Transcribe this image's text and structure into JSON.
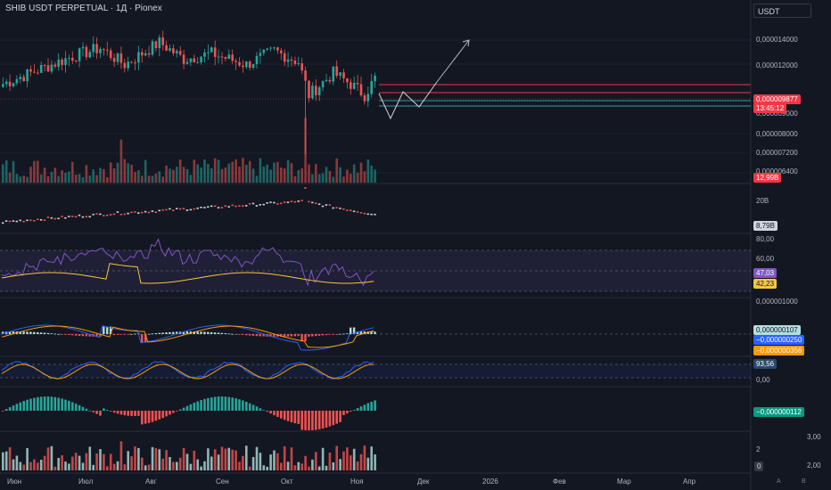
{
  "header": {
    "title": "SHIB USDT PERPETUAL · 1Д · Pionex",
    "currency_button": "USDT"
  },
  "price_axis": [
    "0,000014000",
    "0,000012000",
    "0,000009000",
    "0,000008000",
    "0,000007200",
    "0,000006400"
  ],
  "price_badge": {
    "price": "0,000009877",
    "countdown": "13:45:12"
  },
  "volume_badge": "12,99B",
  "obv_pane": {
    "axis": "20B",
    "value": "8,79B"
  },
  "rsi_pane": {
    "axis_top": "80,00",
    "axis_mid": "60,00",
    "rsi": "47,03",
    "ma": "42,23"
  },
  "macd_pane": {
    "axis": "0,000001000",
    "hist": "0,000000107",
    "macd": "−0,000000250",
    "signal": "−0,000000356"
  },
  "stoch_pane": {
    "value": "93,56",
    "axis": "0,00"
  },
  "osc_pane": {
    "value": "−0,000000112"
  },
  "bottom_pane": {
    "axis_a": "3,00",
    "axis_b": "2",
    "axis_c": "2,00",
    "axis_d": "0"
  },
  "time_axis": [
    "Июн",
    "Июл",
    "Авг",
    "Сен",
    "Окт",
    "Ноя",
    "Дек",
    "2026",
    "Фев",
    "Мар",
    "Апр"
  ],
  "corner": {
    "a": "A",
    "b": "B"
  },
  "colors": {
    "up": "#26a69a",
    "down": "#ef5350",
    "background": "#131722",
    "rsi": "#7e57c2",
    "ma": "#f9c642",
    "macd": "#2962ff",
    "signal": "#ff9800"
  }
}
